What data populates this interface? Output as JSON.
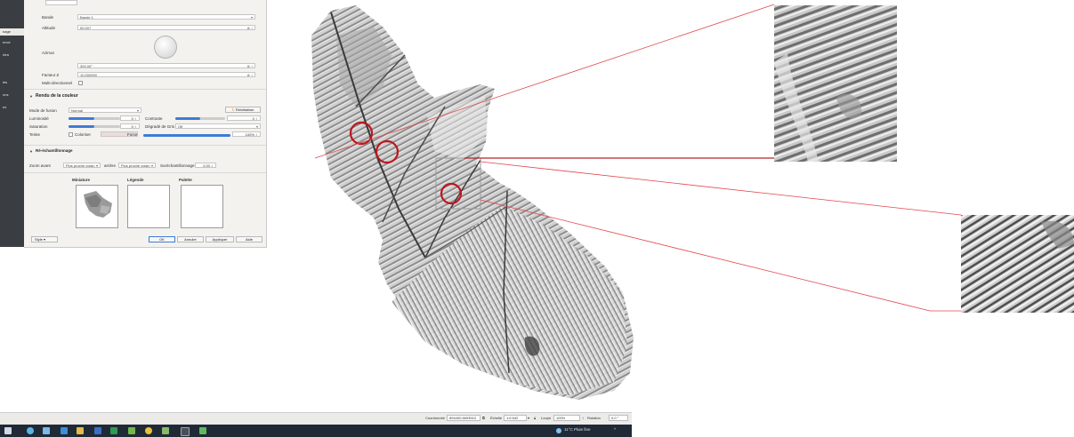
{
  "sidebar": {
    "items": [
      {
        "label": "nage",
        "active": true
      },
      {
        "label": "ence"
      },
      {
        "label": "ntra"
      },
      {
        "label": "iés"
      },
      {
        "label": "ons"
      },
      {
        "label": "es"
      }
    ]
  },
  "dialog": {
    "render": {
      "band_label": "Bande",
      "band_value": "Bande 1",
      "altitude_label": "Altitude",
      "altitude_value": "50.007",
      "azimuth_label": "Azimut",
      "azimuth_value": "300.00°",
      "zfactor_label": "Facteur Z",
      "zfactor_value": "10.000000",
      "multidir_label": "Multi-directionnel"
    },
    "color_section": {
      "title": "Rendu de la couleur",
      "blend_label": "Mode de fusion",
      "blend_value": "Normal",
      "reset_label": "Réinitialiser",
      "brightness_label": "Luminosité",
      "brightness_value": "0",
      "brightness_fill": 0.5,
      "contrast_label": "Contraste",
      "contrast_value": "0",
      "contrast_fill": 0.5,
      "saturation_label": "Saturation",
      "saturation_value": "0",
      "saturation_fill": 0.5,
      "grayscale_label": "Dégradé de Gris",
      "grayscale_value": "Off",
      "hue_label": "Teinte",
      "colorize_label": "Coloriser",
      "strength_label": "Force",
      "strength_value": "100%",
      "strength_fill": 1.0
    },
    "resampling": {
      "title": "Ré-échantillonnage",
      "zoomed_in_label": "Zoom avant",
      "zoomed_in_value": "Plus proche voisin",
      "zoomed_out_label": "arrière",
      "zoomed_out_value": "Plus proche voisin",
      "oversampling_label": "Suréchantillonnage",
      "oversampling_value": "2.00"
    },
    "previews": {
      "thumbnail_label": "Miniature",
      "legend_label": "Légende",
      "palette_label": "Palette"
    },
    "footer": {
      "style_label": "Style",
      "ok": "OK",
      "cancel": "Annuler",
      "apply": "Appliquer",
      "help": "Aide"
    }
  },
  "statusbar": {
    "coord_label": "Coordonnée",
    "coord_value": "894400,6693510",
    "scale_label": "Échelle",
    "scale_value": "1:6 642",
    "magnifier_label": "Loupe",
    "magnifier_value": "100%",
    "rotation_label": "Rotation",
    "rotation_value": "0,0 °"
  },
  "taskbar": {
    "weather": "11°C  Pluie fine"
  },
  "colors": {
    "highlight": "#c0141c",
    "connector": "#e0464c",
    "accent": "#3f7bd6"
  },
  "icons": [
    "start-icon",
    "search-icon",
    "taskview-icon",
    "edge-icon",
    "explorer-icon",
    "word-icon",
    "excel-icon",
    "qgis-icon",
    "chrome-icon",
    "cloud-icon",
    "app-icon",
    "up-arrow-icon"
  ]
}
